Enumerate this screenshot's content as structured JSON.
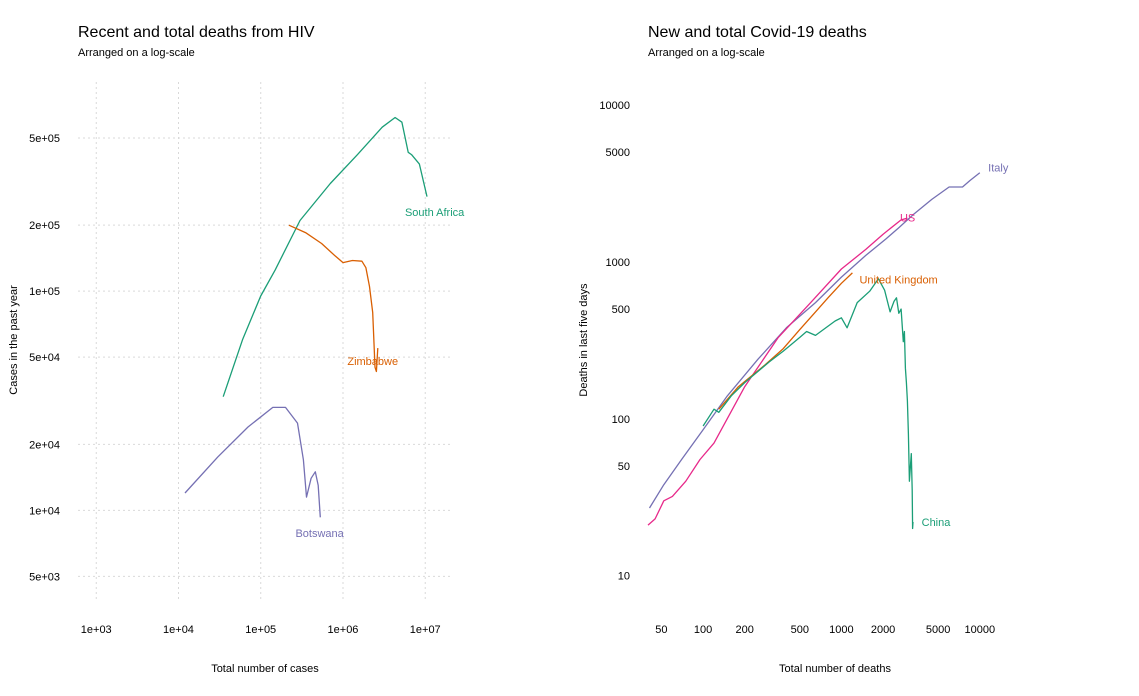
{
  "chart_data": [
    {
      "type": "line",
      "title": "Recent and total deaths from HIV",
      "subtitle": "Arranged on a log-scale",
      "xlabel": "Total number of cases",
      "ylabel": "Cases in the past year",
      "xscale": "log",
      "yscale": "log",
      "xlim": [
        600,
        20000000
      ],
      "ylim": [
        3900,
        900000
      ],
      "grid": true,
      "x_ticks": [
        {
          "value": 1000,
          "label": "1e+03"
        },
        {
          "value": 10000,
          "label": "1e+04"
        },
        {
          "value": 100000,
          "label": "1e+05"
        },
        {
          "value": 1000000,
          "label": "1e+06"
        },
        {
          "value": 10000000,
          "label": "1e+07"
        }
      ],
      "y_ticks": [
        {
          "value": 5000,
          "label": "5e+03"
        },
        {
          "value": 10000,
          "label": "1e+04"
        },
        {
          "value": 20000,
          "label": "2e+04"
        },
        {
          "value": 50000,
          "label": "5e+04"
        },
        {
          "value": 100000,
          "label": "1e+05"
        },
        {
          "value": 200000,
          "label": "2e+05"
        },
        {
          "value": 500000,
          "label": "5e+05"
        }
      ],
      "series": [
        {
          "name": "South Africa",
          "color": "#1b9e77",
          "x": [
            35000,
            60000,
            100000,
            150000,
            300000,
            700000,
            1500000,
            3000000,
            4300000,
            5200000,
            6200000,
            6800000,
            8500000,
            10500000
          ],
          "y": [
            33000,
            60000,
            95000,
            125000,
            210000,
            310000,
            420000,
            560000,
            620000,
            590000,
            430000,
            420000,
            380000,
            270000
          ],
          "label": "South Africa",
          "label_pos": [
            13000000,
            230000
          ]
        },
        {
          "name": "Zimbabwe",
          "color": "#d95f02",
          "x": [
            220000,
            350000,
            550000,
            800000,
            1000000,
            1300000,
            1700000,
            1900000,
            2100000,
            2300000,
            2450000,
            2550000,
            2650000
          ],
          "y": [
            200000,
            185000,
            165000,
            145000,
            135000,
            138000,
            137000,
            128000,
            105000,
            80000,
            45000,
            43000,
            55000
          ],
          "label": "Zimbabwe",
          "label_pos": [
            2300000,
            48000
          ]
        },
        {
          "name": "Botswana",
          "color": "#7570b3",
          "x": [
            12000,
            30000,
            70000,
            140000,
            200000,
            280000,
            330000,
            360000,
            410000,
            460000,
            500000,
            530000
          ],
          "y": [
            12000,
            17500,
            24000,
            29500,
            29500,
            25000,
            17000,
            11500,
            14000,
            15000,
            13000,
            9300
          ],
          "label": "Botswana",
          "label_pos": [
            520000,
            7900
          ]
        }
      ]
    },
    {
      "type": "line",
      "title": "New and total Covid-19 deaths",
      "subtitle": "Arranged on a log-scale",
      "xlabel": "Total number of deaths",
      "ylabel": "Deaths in last five days",
      "xscale": "log",
      "yscale": "log",
      "xlim": [
        40,
        14000
      ],
      "ylim": [
        7,
        14000
      ],
      "grid": false,
      "x_ticks": [
        {
          "value": 50,
          "label": "50"
        },
        {
          "value": 100,
          "label": "100"
        },
        {
          "value": 200,
          "label": "200"
        },
        {
          "value": 500,
          "label": "500"
        },
        {
          "value": 1000,
          "label": "1000"
        },
        {
          "value": 2000,
          "label": "2000"
        },
        {
          "value": 5000,
          "label": "5000"
        },
        {
          "value": 10000,
          "label": "10000"
        }
      ],
      "y_ticks": [
        {
          "value": 10,
          "label": "10"
        },
        {
          "value": 50,
          "label": "50"
        },
        {
          "value": 100,
          "label": "100"
        },
        {
          "value": 500,
          "label": "500"
        },
        {
          "value": 1000,
          "label": "1000"
        },
        {
          "value": 5000,
          "label": "5000"
        },
        {
          "value": 10000,
          "label": "10000"
        }
      ],
      "series": [
        {
          "name": "Italy",
          "color": "#7570b3",
          "x": [
            41,
            52,
            70,
            100,
            150,
            250,
            400,
            650,
            1000,
            1500,
            2100,
            2600,
            3300,
            4500,
            6000,
            7500,
            8500,
            10000
          ],
          "y": [
            27,
            38,
            55,
            85,
            140,
            240,
            380,
            550,
            800,
            1100,
            1400,
            1650,
            2000,
            2500,
            3000,
            3000,
            3300,
            3700
          ],
          "label": "Italy",
          "label_pos": [
            11500,
            4000
          ]
        },
        {
          "name": "US",
          "color": "#e7298a",
          "x": [
            40,
            45,
            52,
            60,
            75,
            95,
            120,
            200,
            350,
            600,
            1000,
            1500,
            2000,
            2700,
            3000
          ],
          "y": [
            21,
            23,
            30,
            32,
            40,
            55,
            70,
            160,
            330,
            550,
            900,
            1200,
            1500,
            1850,
            1900
          ],
          "label": "US",
          "label_pos": [
            2650,
            1920
          ]
        },
        {
          "name": "United Kingdom",
          "color": "#d95f02",
          "x": [
            130,
            180,
            280,
            380,
            500,
            650,
            800,
            1000,
            1200
          ],
          "y": [
            115,
            160,
            220,
            280,
            370,
            480,
            590,
            730,
            850
          ],
          "label": "United Kingdom",
          "label_pos": [
            1350,
            770
          ]
        },
        {
          "name": "China",
          "color": "#1b9e77",
          "x": [
            100,
            120,
            130,
            160,
            200,
            300,
            380,
            500,
            560,
            650,
            900,
            1000,
            1100,
            1300,
            1600,
            1850,
            2050,
            2250,
            2400,
            2500,
            2600,
            2700,
            2800,
            2850,
            2900,
            2950,
            3000,
            3050,
            3100,
            3200,
            3250,
            3270,
            3290
          ],
          "y": [
            90,
            115,
            110,
            140,
            170,
            230,
            270,
            330,
            360,
            340,
            420,
            440,
            380,
            550,
            650,
            780,
            660,
            480,
            560,
            590,
            470,
            500,
            310,
            360,
            210,
            170,
            130,
            80,
            40,
            60,
            35,
            20,
            22
          ],
          "label": "China",
          "label_pos": [
            3800,
            22
          ]
        }
      ]
    }
  ]
}
